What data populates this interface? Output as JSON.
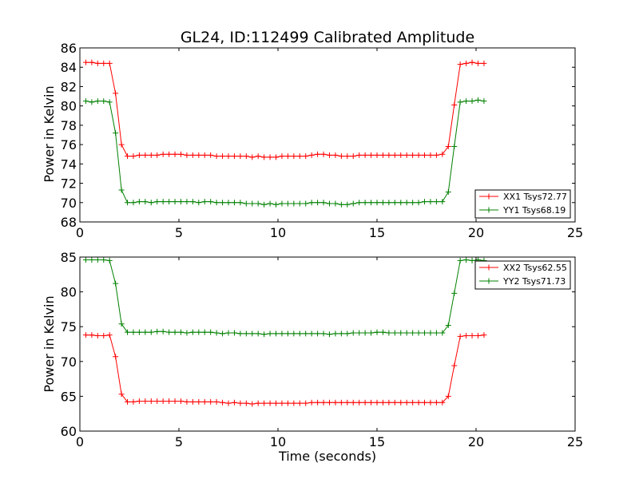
{
  "chart_data": [
    {
      "type": "line",
      "title": "GL24, ID:112499 Calibrated Amplitude",
      "xlabel": "",
      "ylabel": "Power in Kelvin",
      "xlim": [
        0,
        25
      ],
      "ylim": [
        68,
        86
      ],
      "xticks": [
        "0",
        "5",
        "10",
        "15",
        "20",
        "25"
      ],
      "yticks": [
        "68",
        "70",
        "72",
        "74",
        "76",
        "78",
        "80",
        "82",
        "84",
        "86"
      ],
      "legend_position": "lower-right",
      "x": [
        0.3,
        0.6,
        0.9,
        1.2,
        1.5,
        1.8,
        2.1,
        2.4,
        2.7,
        3.0,
        3.3,
        3.6,
        3.9,
        4.2,
        4.5,
        4.8,
        5.1,
        5.4,
        5.7,
        6.0,
        6.3,
        6.6,
        6.9,
        7.2,
        7.5,
        7.8,
        8.1,
        8.4,
        8.7,
        9.0,
        9.3,
        9.6,
        9.9,
        10.2,
        10.5,
        10.8,
        11.1,
        11.4,
        11.7,
        12.0,
        12.3,
        12.6,
        12.9,
        13.2,
        13.5,
        13.8,
        14.1,
        14.4,
        14.7,
        15.0,
        15.3,
        15.6,
        15.9,
        16.2,
        16.5,
        16.8,
        17.1,
        17.4,
        17.7,
        18.0,
        18.3,
        18.6,
        18.9,
        19.2,
        19.5,
        19.8,
        20.1,
        20.4
      ],
      "series": [
        {
          "name": "XX1 Tsys72.77",
          "color": "#ff0000",
          "values": [
            84.5,
            84.5,
            84.4,
            84.4,
            84.4,
            81.3,
            76.0,
            74.8,
            74.8,
            74.9,
            74.9,
            74.9,
            74.9,
            75.0,
            75.0,
            75.0,
            75.0,
            74.9,
            74.9,
            74.9,
            74.9,
            74.9,
            74.8,
            74.8,
            74.8,
            74.8,
            74.8,
            74.8,
            74.7,
            74.8,
            74.7,
            74.7,
            74.7,
            74.8,
            74.8,
            74.8,
            74.8,
            74.8,
            74.9,
            75.0,
            75.0,
            74.9,
            74.9,
            74.8,
            74.8,
            74.8,
            74.9,
            74.9,
            74.9,
            74.9,
            74.9,
            74.9,
            74.9,
            74.9,
            74.9,
            74.9,
            74.9,
            74.9,
            74.9,
            74.9,
            75.0,
            75.8,
            80.1,
            84.3,
            84.4,
            84.5,
            84.4,
            84.4
          ]
        },
        {
          "name": "YY1 Tsys68.19",
          "color": "#008000",
          "values": [
            80.5,
            80.4,
            80.5,
            80.5,
            80.4,
            77.2,
            71.3,
            70.0,
            70.0,
            70.1,
            70.1,
            70.0,
            70.1,
            70.1,
            70.1,
            70.1,
            70.1,
            70.1,
            70.1,
            70.0,
            70.1,
            70.1,
            70.0,
            70.0,
            70.0,
            70.0,
            70.0,
            69.9,
            69.9,
            69.9,
            69.8,
            69.9,
            69.8,
            69.9,
            69.9,
            69.9,
            69.9,
            69.9,
            70.0,
            70.0,
            70.0,
            69.9,
            69.9,
            69.8,
            69.8,
            69.9,
            70.0,
            70.0,
            70.0,
            70.0,
            70.0,
            70.0,
            70.0,
            70.0,
            70.0,
            70.0,
            70.0,
            70.1,
            70.1,
            70.1,
            70.1,
            71.1,
            75.8,
            80.4,
            80.5,
            80.5,
            80.6,
            80.5
          ]
        }
      ]
    },
    {
      "type": "line",
      "title": "",
      "xlabel": "Time (seconds)",
      "ylabel": "Power in Kelvin",
      "xlim": [
        0,
        25
      ],
      "ylim": [
        60,
        85
      ],
      "xticks": [
        "0",
        "5",
        "10",
        "15",
        "20",
        "25"
      ],
      "yticks": [
        "60",
        "65",
        "70",
        "75",
        "80",
        "85"
      ],
      "legend_position": "upper-right",
      "x": [
        0.3,
        0.6,
        0.9,
        1.2,
        1.5,
        1.8,
        2.1,
        2.4,
        2.7,
        3.0,
        3.3,
        3.6,
        3.9,
        4.2,
        4.5,
        4.8,
        5.1,
        5.4,
        5.7,
        6.0,
        6.3,
        6.6,
        6.9,
        7.2,
        7.5,
        7.8,
        8.1,
        8.4,
        8.7,
        9.0,
        9.3,
        9.6,
        9.9,
        10.2,
        10.5,
        10.8,
        11.1,
        11.4,
        11.7,
        12.0,
        12.3,
        12.6,
        12.9,
        13.2,
        13.5,
        13.8,
        14.1,
        14.4,
        14.7,
        15.0,
        15.3,
        15.6,
        15.9,
        16.2,
        16.5,
        16.8,
        17.1,
        17.4,
        17.7,
        18.0,
        18.3,
        18.6,
        18.9,
        19.2,
        19.5,
        19.8,
        20.1,
        20.4
      ],
      "series": [
        {
          "name": "XX2 Tsys62.55",
          "color": "#ff0000",
          "values": [
            73.8,
            73.8,
            73.7,
            73.7,
            73.8,
            70.7,
            65.3,
            64.2,
            64.2,
            64.3,
            64.3,
            64.3,
            64.3,
            64.3,
            64.3,
            64.3,
            64.3,
            64.2,
            64.2,
            64.2,
            64.2,
            64.2,
            64.2,
            64.1,
            64.0,
            64.1,
            64.0,
            64.0,
            63.9,
            64.0,
            64.0,
            64.0,
            64.0,
            64.0,
            64.0,
            64.0,
            64.0,
            64.0,
            64.1,
            64.1,
            64.1,
            64.1,
            64.1,
            64.1,
            64.1,
            64.1,
            64.1,
            64.1,
            64.1,
            64.1,
            64.1,
            64.1,
            64.1,
            64.1,
            64.1,
            64.1,
            64.1,
            64.1,
            64.1,
            64.1,
            64.1,
            65.0,
            69.4,
            73.6,
            73.7,
            73.7,
            73.7,
            73.8
          ]
        },
        {
          "name": "YY2 Tsys71.73",
          "color": "#008000",
          "values": [
            84.6,
            84.6,
            84.6,
            84.6,
            84.5,
            81.2,
            75.4,
            74.2,
            74.2,
            74.2,
            74.2,
            74.2,
            74.3,
            74.3,
            74.2,
            74.2,
            74.2,
            74.1,
            74.2,
            74.2,
            74.2,
            74.2,
            74.1,
            74.0,
            74.1,
            74.1,
            74.0,
            74.0,
            74.0,
            74.0,
            73.9,
            74.0,
            74.0,
            74.0,
            74.0,
            74.0,
            74.0,
            74.0,
            74.0,
            74.0,
            74.0,
            73.9,
            74.0,
            74.0,
            74.0,
            74.1,
            74.1,
            74.1,
            74.1,
            74.2,
            74.2,
            74.1,
            74.1,
            74.1,
            74.1,
            74.1,
            74.1,
            74.1,
            74.1,
            74.1,
            74.1,
            75.2,
            79.8,
            84.5,
            84.6,
            84.5,
            84.6,
            84.5
          ]
        }
      ]
    }
  ]
}
